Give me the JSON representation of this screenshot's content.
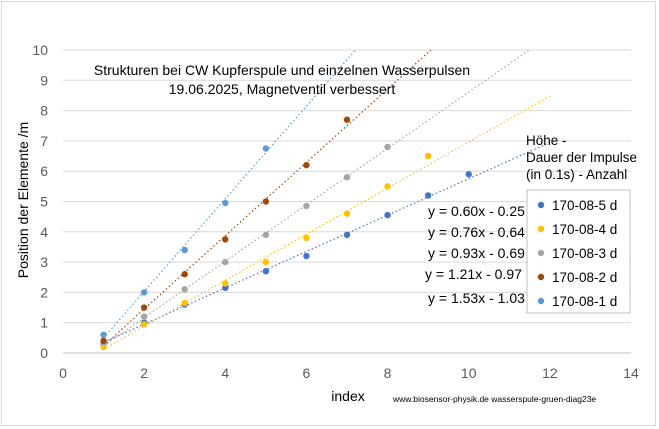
{
  "chart_data": {
    "type": "scatter",
    "title": "Strukturen bei CW Kupferspule und einzelnen Wasserpulsen",
    "subtitle": "19.06.2025, Magnetventil verbessert",
    "xlabel": "index",
    "ylabel": "Position der Elemente /m",
    "xlim": [
      0,
      14
    ],
    "ylim": [
      0,
      10
    ],
    "xticks": [
      "0",
      "2",
      "4",
      "6",
      "8",
      "10",
      "12",
      "14"
    ],
    "yticks": [
      "0",
      "1",
      "2",
      "3",
      "4",
      "5",
      "6",
      "7",
      "8",
      "9",
      "10"
    ],
    "grid": "horizontal",
    "legend_position": "right",
    "legend_note": [
      "Höhe -",
      "Dauer der Impulse",
      "(in 0.1s) -  Anzahl"
    ],
    "credit": "www.biosensor-physik.de  wasserspule-gruen-diag23e",
    "series": [
      {
        "name": "170-08-5 d",
        "color": "#4472c4",
        "trend": "y = 0.60x - 0.25",
        "slope": 0.6,
        "intercept": -0.25,
        "trend_to": 12,
        "points": [
          [
            1,
            0.3
          ],
          [
            2,
            1.0
          ],
          [
            3,
            1.6
          ],
          [
            4,
            2.15
          ],
          [
            5,
            2.7
          ],
          [
            6,
            3.2
          ],
          [
            7,
            3.9
          ],
          [
            8,
            4.55
          ],
          [
            9,
            5.2
          ],
          [
            10,
            5.9
          ]
        ]
      },
      {
        "name": "170-08-4 d",
        "color": "#ffc000",
        "trend": "y = 0.76x - 0.64",
        "slope": 0.76,
        "intercept": -0.64,
        "trend_to": 12,
        "points": [
          [
            1,
            0.2
          ],
          [
            2,
            0.95
          ],
          [
            3,
            1.65
          ],
          [
            4,
            2.3
          ],
          [
            5,
            3.0
          ],
          [
            6,
            3.8
          ],
          [
            7,
            4.6
          ],
          [
            8,
            5.5
          ],
          [
            9,
            6.5
          ]
        ]
      },
      {
        "name": "170-08-3 d",
        "color": "#a5a5a5",
        "trend": "y = 0.93x - 0.69",
        "slope": 0.93,
        "intercept": -0.69,
        "trend_to": 12,
        "points": [
          [
            1,
            0.35
          ],
          [
            2,
            1.2
          ],
          [
            3,
            2.1
          ],
          [
            4,
            3.0
          ],
          [
            5,
            3.9
          ],
          [
            6,
            4.85
          ],
          [
            7,
            5.8
          ],
          [
            8,
            6.8
          ]
        ]
      },
      {
        "name": "170-08-2 d",
        "color": "#9e480e",
        "trend": "y = 1.21x - 0.97",
        "slope": 1.21,
        "intercept": -0.97,
        "trend_to": 12,
        "points": [
          [
            1,
            0.4
          ],
          [
            2,
            1.5
          ],
          [
            3,
            2.6
          ],
          [
            4,
            3.75
          ],
          [
            5,
            5.0
          ],
          [
            6,
            6.2
          ],
          [
            7,
            7.7
          ]
        ]
      },
      {
        "name": "170-08-1 d",
        "color": "#5b9bd5",
        "trend": "y = 1.53x - 1.03",
        "slope": 1.53,
        "intercept": -1.03,
        "trend_to": 12,
        "points": [
          [
            1,
            0.6
          ],
          [
            2,
            2.0
          ],
          [
            3,
            3.4
          ],
          [
            4,
            4.95
          ],
          [
            5,
            6.75
          ]
        ]
      }
    ]
  }
}
